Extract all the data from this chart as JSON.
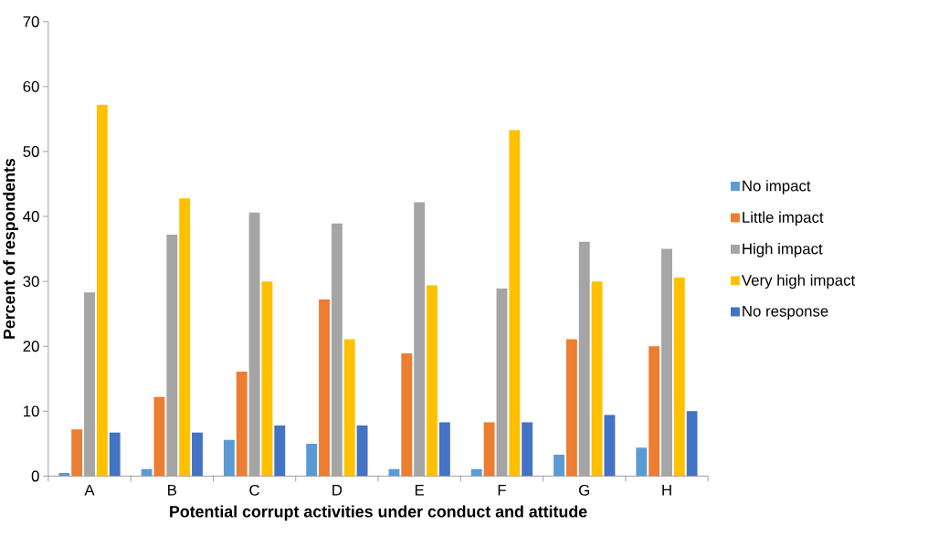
{
  "chart_data": {
    "type": "bar",
    "xlabel": "Potential corrupt activities under conduct and attitude",
    "ylabel": "Percent of respondents",
    "categories": [
      "A",
      "B",
      "C",
      "D",
      "E",
      "F",
      "G",
      "H"
    ],
    "series": [
      {
        "name": "No impact",
        "color": "#5b9bd5",
        "values": [
          0.5,
          1.1,
          5.6,
          5.0,
          1.1,
          1.1,
          3.3,
          4.4
        ]
      },
      {
        "name": "Little impact",
        "color": "#ed7d31",
        "values": [
          7.2,
          12.2,
          16.1,
          27.2,
          18.9,
          8.3,
          21.1,
          20.0
        ]
      },
      {
        "name": "High impact",
        "color": "#a5a5a5",
        "values": [
          28.3,
          37.2,
          40.6,
          38.9,
          42.2,
          28.9,
          36.1,
          35.0
        ]
      },
      {
        "name": "Very high impact",
        "color": "#ffc000",
        "values": [
          57.2,
          42.8,
          30.0,
          21.1,
          29.4,
          53.3,
          30.0,
          30.6
        ]
      },
      {
        "name": "No response",
        "color": "#4472c4",
        "values": [
          6.7,
          6.7,
          7.8,
          7.8,
          8.3,
          8.3,
          9.4,
          10.0
        ]
      }
    ],
    "ylim": [
      0,
      70
    ],
    "yticks": [
      0,
      10,
      20,
      30,
      40,
      50,
      60,
      70
    ],
    "legend": "right"
  }
}
